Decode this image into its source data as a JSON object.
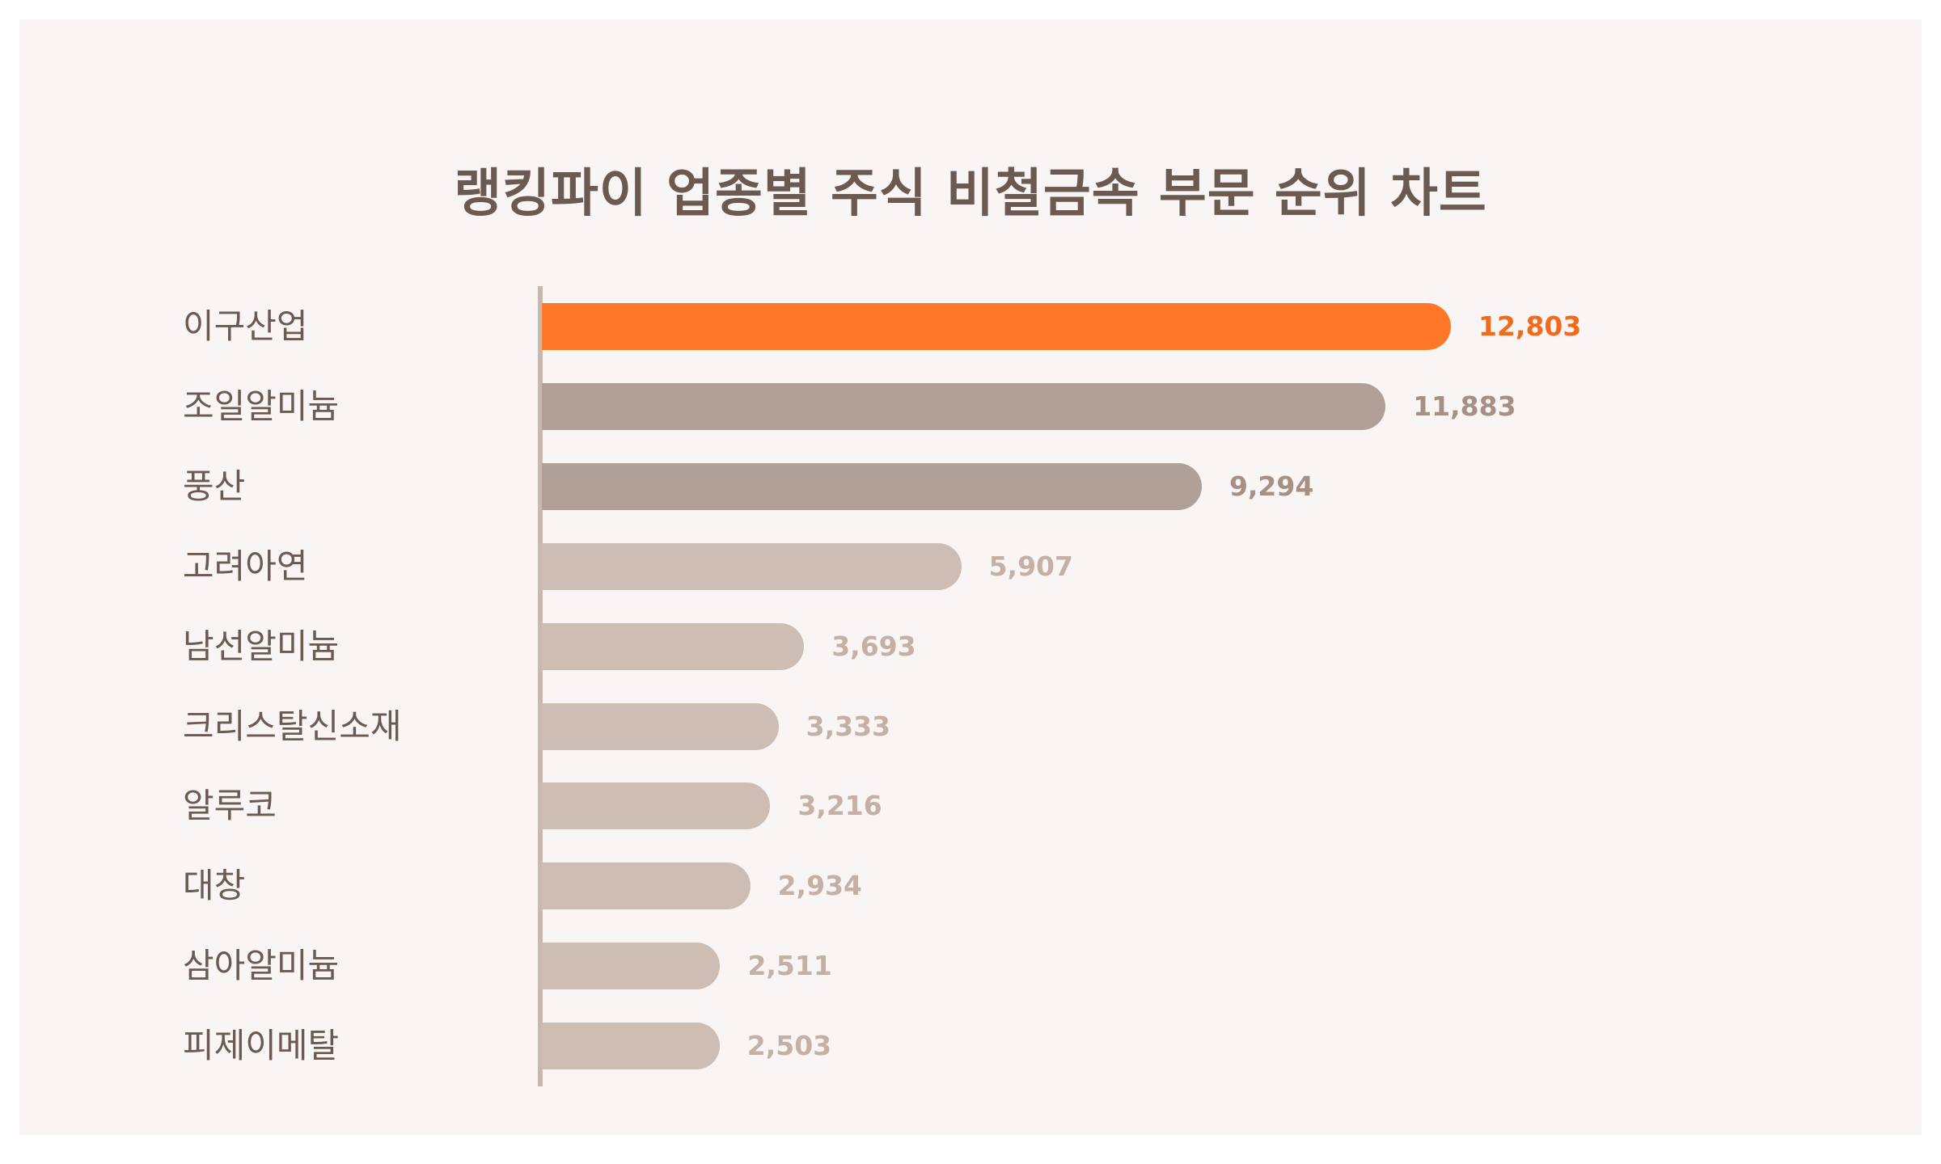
{
  "chart_data": {
    "type": "bar",
    "orientation": "horizontal",
    "title": "랭킹파이 업종별 주식 비철금속 부문 순위 차트",
    "xlabel": "",
    "ylabel": "",
    "xlim": [
      0,
      12803
    ],
    "grid": false,
    "categories": [
      "이구산업",
      "조일알미늄",
      "풍산",
      "고려아연",
      "남선알미늄",
      "크리스탈신소재",
      "알루코",
      "대창",
      "삼아알미늄",
      "피제이메탈"
    ],
    "values": [
      12803,
      11883,
      9294,
      5907,
      3693,
      3333,
      3216,
      2934,
      2511,
      2503
    ],
    "value_labels": [
      "12,803",
      "11,883",
      "9,294",
      "5,907",
      "3,693",
      "3,333",
      "3,216",
      "2,934",
      "2,511",
      "2,503"
    ],
    "tiers": [
      "highlight",
      "dark",
      "dark",
      "light",
      "light",
      "light",
      "light",
      "light",
      "light",
      "light"
    ]
  },
  "colors": {
    "highlight_bar": "#ff7828",
    "highlight_text": "#f26b1d",
    "dark_bar": "#b1a097",
    "dark_text": "#a68f83",
    "light_bar": "#cdbdb3",
    "light_text": "#c4b0a4",
    "label_text": "#6b5a52",
    "background": "#f9f5f4"
  }
}
